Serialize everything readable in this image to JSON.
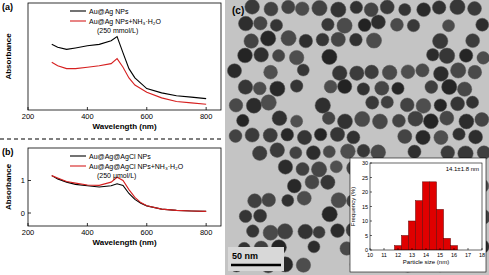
{
  "chart_data": [
    {
      "type": "line",
      "title": "(a)",
      "x_label": "Wavelength (nm)",
      "y_label": "Absorbance",
      "x": [
        280,
        300,
        330,
        360,
        400,
        440,
        480,
        500,
        520,
        540,
        560,
        600,
        650,
        700,
        750,
        800
      ],
      "series": [
        {
          "name": "Au@Ag NPs",
          "color": "#000000",
          "values": [
            0.92,
            0.88,
            0.85,
            0.87,
            0.9,
            0.92,
            0.97,
            1.03,
            0.8,
            0.58,
            0.45,
            0.3,
            0.24,
            0.2,
            0.18,
            0.16
          ]
        },
        {
          "name": "Au@Ag NPs+NH₃·H₂O",
          "color": "#d62020",
          "values": [
            0.67,
            0.62,
            0.58,
            0.58,
            0.6,
            0.62,
            0.65,
            0.72,
            0.6,
            0.45,
            0.35,
            0.25,
            0.17,
            0.12,
            0.1,
            0.08
          ]
        }
      ],
      "annotations": [
        "(250 mmol/L)"
      ],
      "xlim": [
        200,
        850
      ],
      "xticks": [
        200,
        400,
        600,
        800
      ],
      "ylim": [
        0,
        1.5
      ],
      "tick_labels": "x",
      "legend": "upper right",
      "grid": false
    },
    {
      "type": "line",
      "title": "(b)",
      "x_label": "Wavelength (nm)",
      "y_label": "Absorbance",
      "x": [
        280,
        300,
        330,
        360,
        400,
        440,
        480,
        500,
        520,
        540,
        560,
        580,
        600,
        650,
        700,
        750,
        800
      ],
      "series": [
        {
          "name": "Au@Ag@AgCl NPs",
          "color": "#000000",
          "values": [
            1.15,
            1.05,
            0.95,
            0.88,
            0.84,
            0.8,
            0.84,
            0.9,
            0.85,
            0.6,
            0.42,
            0.3,
            0.22,
            0.12,
            0.08,
            0.06,
            0.05
          ]
        },
        {
          "name": "Au@Ag@AgCl NPs+NH₃·H₂O",
          "color": "#d62020",
          "values": [
            1.15,
            1.08,
            0.97,
            0.92,
            0.86,
            0.85,
            0.95,
            1.1,
            1.0,
            0.72,
            0.48,
            0.32,
            0.22,
            0.12,
            0.08,
            0.06,
            0.05
          ]
        }
      ],
      "annotations": [
        "(250 μmol/L)"
      ],
      "xlim": [
        200,
        850
      ],
      "xticks": [
        200,
        400,
        600,
        800
      ],
      "ylim": [
        -0.4,
        2.0
      ],
      "yticks": [
        0,
        1
      ],
      "legend": "upper right",
      "grid": false
    },
    {
      "type": "histogram",
      "x_label": "Particle size (nm)",
      "y_label": "Frequency (%)",
      "bins": [
        11.75,
        12.25,
        12.75,
        13.25,
        13.75,
        14.25,
        14.75,
        15.25,
        15.75,
        16.25
      ],
      "values": [
        1.5,
        5,
        10,
        17,
        23.5,
        23.5,
        14,
        4,
        1.5
      ],
      "color": "#e00000",
      "annotations": [
        "14.1±1.8 nm"
      ],
      "xlim": [
        10,
        18
      ],
      "xticks": [
        10,
        11,
        12,
        13,
        14,
        15,
        16,
        17,
        18
      ],
      "ylim": [
        0,
        30
      ],
      "yticks": [
        0,
        5,
        10,
        15,
        20,
        25,
        30
      ],
      "grid": false
    }
  ],
  "image": {
    "label": "(c)",
    "scale_bar": "50 nm"
  }
}
